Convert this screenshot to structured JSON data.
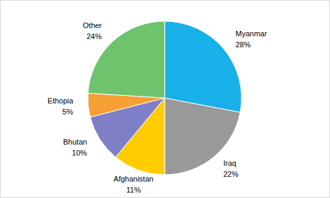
{
  "chart_data": {
    "type": "pie",
    "categories": [
      "Myanmar",
      "Iraq",
      "Afghanistan",
      "Bhutan",
      "Ethopia",
      "Other"
    ],
    "values": [
      28,
      22,
      11,
      10,
      5,
      24
    ],
    "value_labels": [
      "28%",
      "22%",
      "11%",
      "10%",
      "5%",
      "24%"
    ],
    "colors": [
      "#17b0e9",
      "#999999",
      "#ffcc00",
      "#7f7fc7",
      "#f7a034",
      "#6fc36c"
    ],
    "data_labels": true
  }
}
